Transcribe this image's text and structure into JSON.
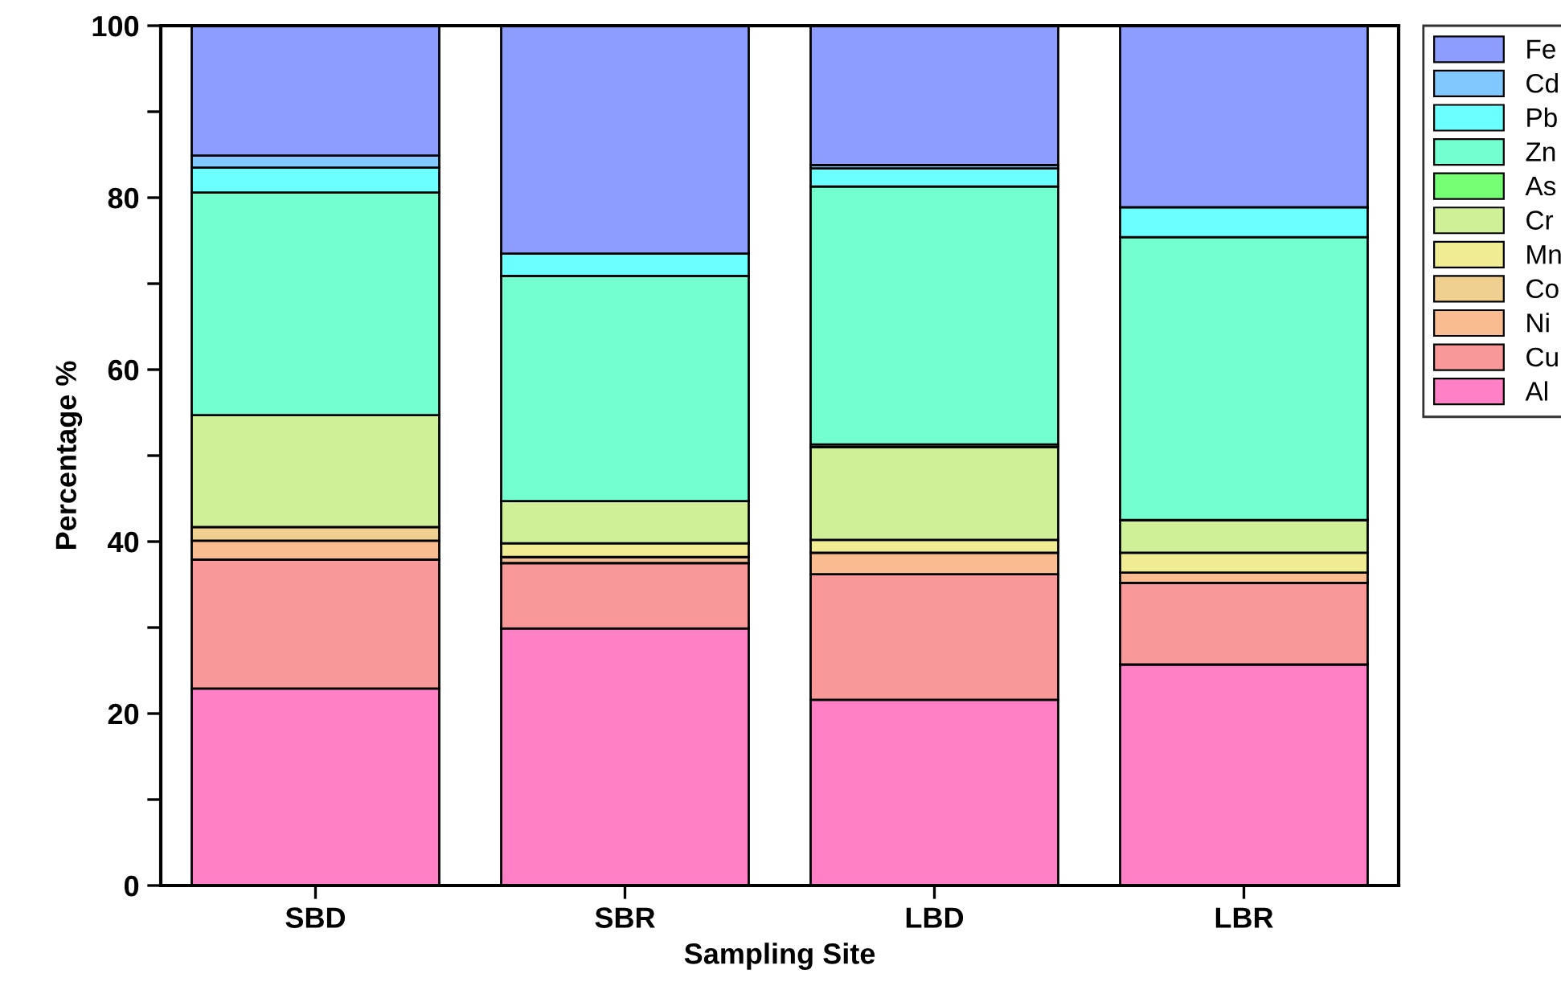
{
  "chart_data": {
    "type": "bar",
    "stacked": true,
    "xlabel": "Sampling Site",
    "ylabel": "Percentage %",
    "categories": [
      "SBD",
      "SBR",
      "LBD",
      "LBR"
    ],
    "series": [
      {
        "name": "Al",
        "color": "#ff80c4",
        "values": [
          22.9,
          29.9,
          21.6,
          25.7
        ]
      },
      {
        "name": "Cu",
        "color": "#f89898",
        "values": [
          15.0,
          7.6,
          14.6,
          9.5
        ]
      },
      {
        "name": "Ni",
        "color": "#f8bc90",
        "values": [
          2.2,
          0.7,
          2.5,
          1.2
        ]
      },
      {
        "name": "Co",
        "color": "#f0d090",
        "values": [
          1.6,
          0,
          null,
          0
        ]
      },
      {
        "name": "Mn",
        "color": "#f0ec94",
        "values": [
          0,
          1.6,
          1.5,
          2.3
        ]
      },
      {
        "name": "Cr",
        "color": "#d0f098",
        "values": [
          13.0,
          4.9,
          10.8,
          3.8
        ]
      },
      {
        "name": "As",
        "color": "#74ff74",
        "values": [
          0,
          0,
          0.3,
          0
        ]
      },
      {
        "name": "Zn",
        "color": "#74ffd0",
        "values": [
          25.9,
          26.2,
          30.0,
          32.9
        ]
      },
      {
        "name": "Pb",
        "color": "#6cffff",
        "values": [
          2.9,
          2.6,
          2.1,
          3.5
        ]
      },
      {
        "name": "Cd",
        "color": "#80c8ff",
        "values": [
          1.4,
          0,
          0.4,
          0
        ]
      },
      {
        "name": "Fe",
        "color": "#8c9cff",
        "values": [
          15.1,
          26.5,
          16.2,
          21.1
        ]
      }
    ],
    "ylim": [
      0,
      100
    ],
    "yticks": [
      0,
      {
        "value": 10,
        "label": null
      },
      20,
      {
        "value": 30,
        "label": null
      },
      40,
      {
        "value": 50,
        "label": null
      },
      60,
      {
        "value": 70,
        "label": null
      },
      80,
      {
        "value": 90,
        "label": null
      },
      100
    ],
    "grid": false,
    "legend": "top right"
  }
}
